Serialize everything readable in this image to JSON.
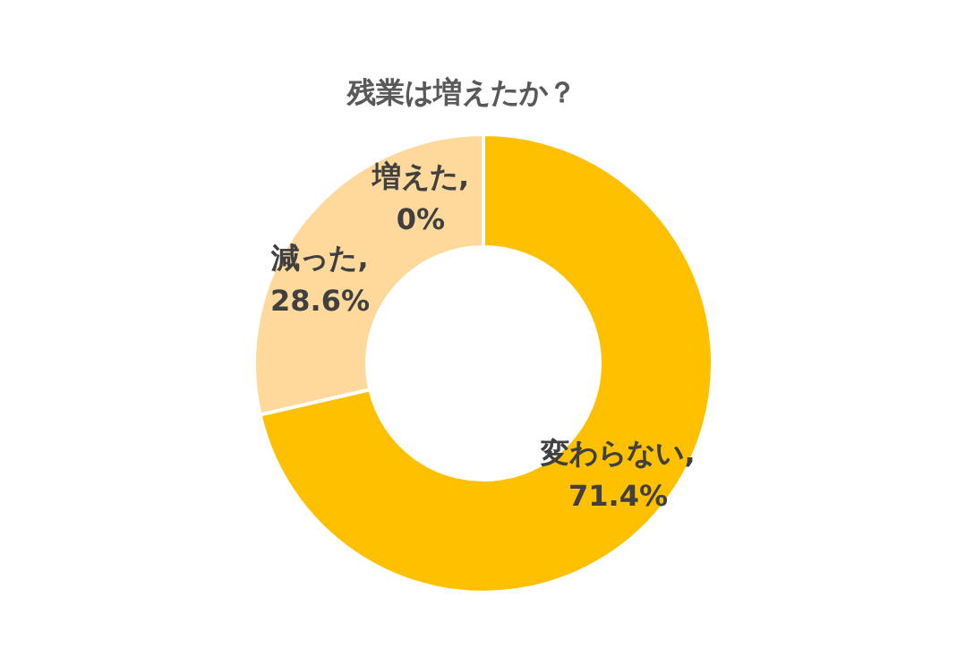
{
  "chart_data": {
    "type": "donut",
    "title": "残業は増えたか？",
    "categories": [
      "増えた",
      "変わらない",
      "減った"
    ],
    "values": [
      0,
      71.4,
      28.6
    ],
    "colors": [
      "#ffe699",
      "#ffc000",
      "#ffd99b"
    ],
    "value_labels": [
      ",\n0%",
      ",\n71.4%",
      ",\n28.6%"
    ],
    "legend": false
  }
}
